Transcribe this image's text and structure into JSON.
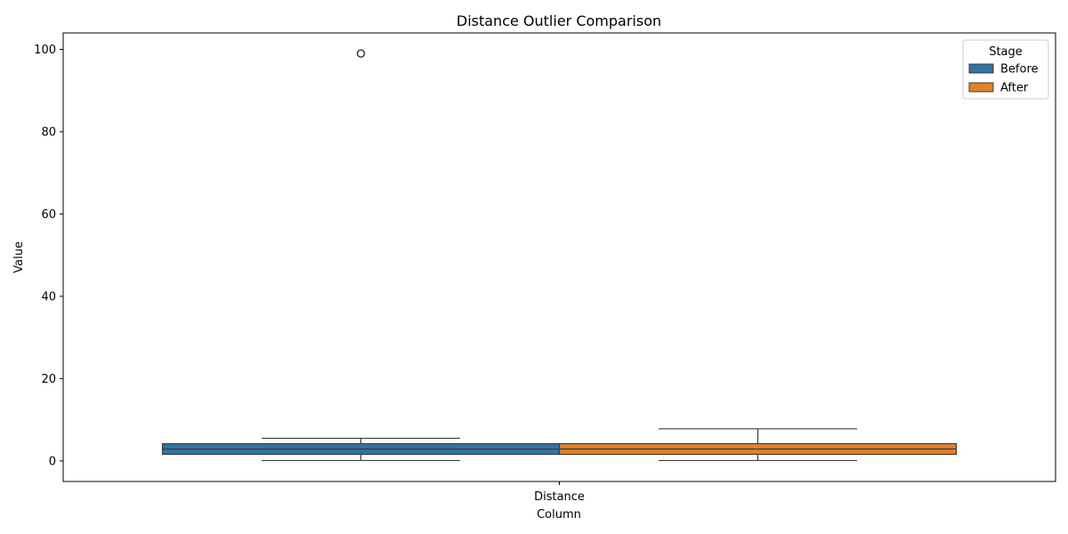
{
  "chart_data": {
    "type": "box",
    "title": "Distance Outlier Comparison",
    "xlabel": "Column",
    "ylabel": "Value",
    "categories": [
      "Distance"
    ],
    "ylim": [
      -5,
      104
    ],
    "yticks": [
      0,
      20,
      40,
      60,
      80,
      100
    ],
    "legend": {
      "title": "Stage",
      "position": "top-right"
    },
    "series": [
      {
        "name": "Before",
        "color": "#3274a1",
        "whisker_low": 0.1,
        "q1": 1.6,
        "median": 2.9,
        "q3": 4.2,
        "whisker_high": 5.5,
        "outliers": [
          99.0
        ]
      },
      {
        "name": "After",
        "color": "#e1812c",
        "whisker_low": 0.1,
        "q1": 1.6,
        "median": 2.9,
        "q3": 4.2,
        "whisker_high": 7.8,
        "outliers": []
      }
    ]
  }
}
